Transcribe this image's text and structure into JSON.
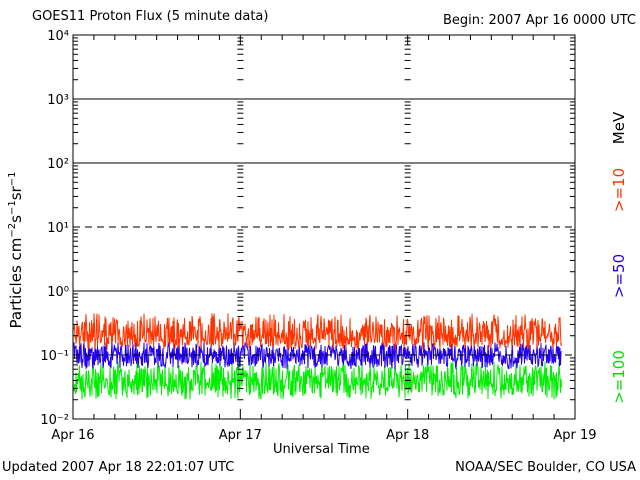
{
  "header": {
    "title": "GOES11 Proton Flux (5 minute data)",
    "begin": "Begin: 2007 Apr 16 0000 UTC"
  },
  "footer": {
    "updated": "Updated 2007 Apr 18 22:01:07 UTC",
    "credit": "NOAA/SEC Boulder, CO USA"
  },
  "chart_data": {
    "type": "line",
    "title": "GOES11 Proton Flux (5 minute data)",
    "xlabel": "Universal Time",
    "ylabel": "Particles cm⁻²s⁻¹sr⁻¹",
    "yscale": "log",
    "ylim": [
      0.01,
      10000
    ],
    "y_tick_labels": [
      "10⁻²",
      "10⁻¹",
      "10⁰",
      "10¹",
      "10²",
      "10³",
      "10⁴"
    ],
    "x_tick_labels": [
      "Apr 16",
      "Apr 17",
      "Apr 18",
      "Apr 19"
    ],
    "xlim": [
      "2007-04-16 00:00",
      "2007-04-19 00:00"
    ],
    "data_end": "2007-04-18 22:00",
    "legend_placement": "right, vertical",
    "legend_unit": "MeV",
    "series": [
      {
        "name": ">=10",
        "color": "#ff3300",
        "typical_range": [
          0.12,
          0.45
        ],
        "median": 0.2
      },
      {
        "name": ">=50",
        "color": "#2200ee",
        "typical_range": [
          0.06,
          0.16
        ],
        "median": 0.1
      },
      {
        "name": ">=100",
        "color": "#00ee00",
        "typical_range": [
          0.02,
          0.08
        ],
        "median": 0.04
      }
    ],
    "reference_lines": [
      {
        "value": 10,
        "style": "dashed"
      },
      {
        "value": 0.1,
        "style": "dashed"
      }
    ]
  }
}
